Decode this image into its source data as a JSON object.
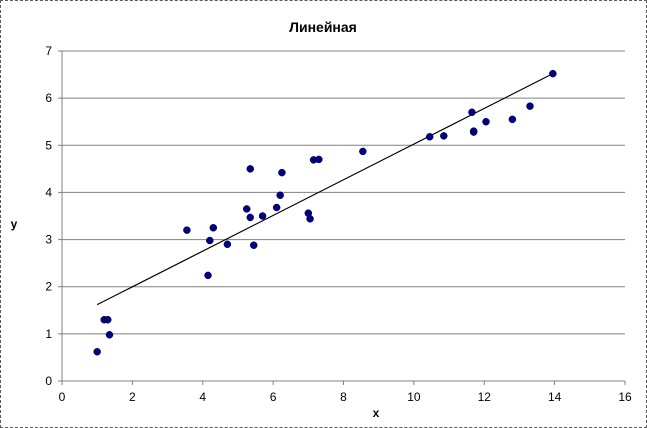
{
  "chart_data": {
    "type": "scatter",
    "title": "Линейная",
    "xlabel": "x",
    "ylabel": "y",
    "xlim": [
      0,
      16
    ],
    "ylim": [
      0,
      7
    ],
    "xticks": [
      0,
      2,
      4,
      6,
      8,
      10,
      12,
      14,
      16
    ],
    "yticks": [
      0,
      1,
      2,
      3,
      4,
      5,
      6,
      7
    ],
    "grid": "horizontal",
    "legend": "none",
    "colors": {
      "points": "#000080",
      "trendline": "#000000",
      "gridlines": "#808080"
    },
    "series": [
      {
        "points": [
          [
            1.0,
            0.62
          ],
          [
            1.2,
            1.3
          ],
          [
            1.3,
            1.3
          ],
          [
            1.35,
            0.98
          ],
          [
            3.55,
            3.2
          ],
          [
            4.15,
            2.24
          ],
          [
            4.2,
            2.98
          ],
          [
            4.3,
            3.25
          ],
          [
            4.7,
            2.9
          ],
          [
            5.25,
            3.65
          ],
          [
            5.35,
            4.5
          ],
          [
            5.35,
            3.47
          ],
          [
            5.45,
            2.88
          ],
          [
            5.7,
            3.5
          ],
          [
            6.1,
            3.68
          ],
          [
            6.2,
            3.94
          ],
          [
            6.25,
            4.42
          ],
          [
            7.0,
            3.56
          ],
          [
            7.05,
            3.44
          ],
          [
            7.15,
            4.69
          ],
          [
            7.3,
            4.7
          ],
          [
            8.55,
            4.87
          ],
          [
            10.45,
            5.18
          ],
          [
            10.85,
            5.2
          ],
          [
            11.65,
            5.7
          ],
          [
            11.7,
            5.3
          ],
          [
            11.7,
            5.28
          ],
          [
            12.05,
            5.5
          ],
          [
            12.8,
            5.55
          ],
          [
            13.3,
            5.83
          ],
          [
            13.95,
            6.52
          ]
        ]
      }
    ],
    "trendline": {
      "type": "linear",
      "from": [
        1.0,
        1.62
      ],
      "to": [
        13.95,
        6.52
      ]
    }
  }
}
